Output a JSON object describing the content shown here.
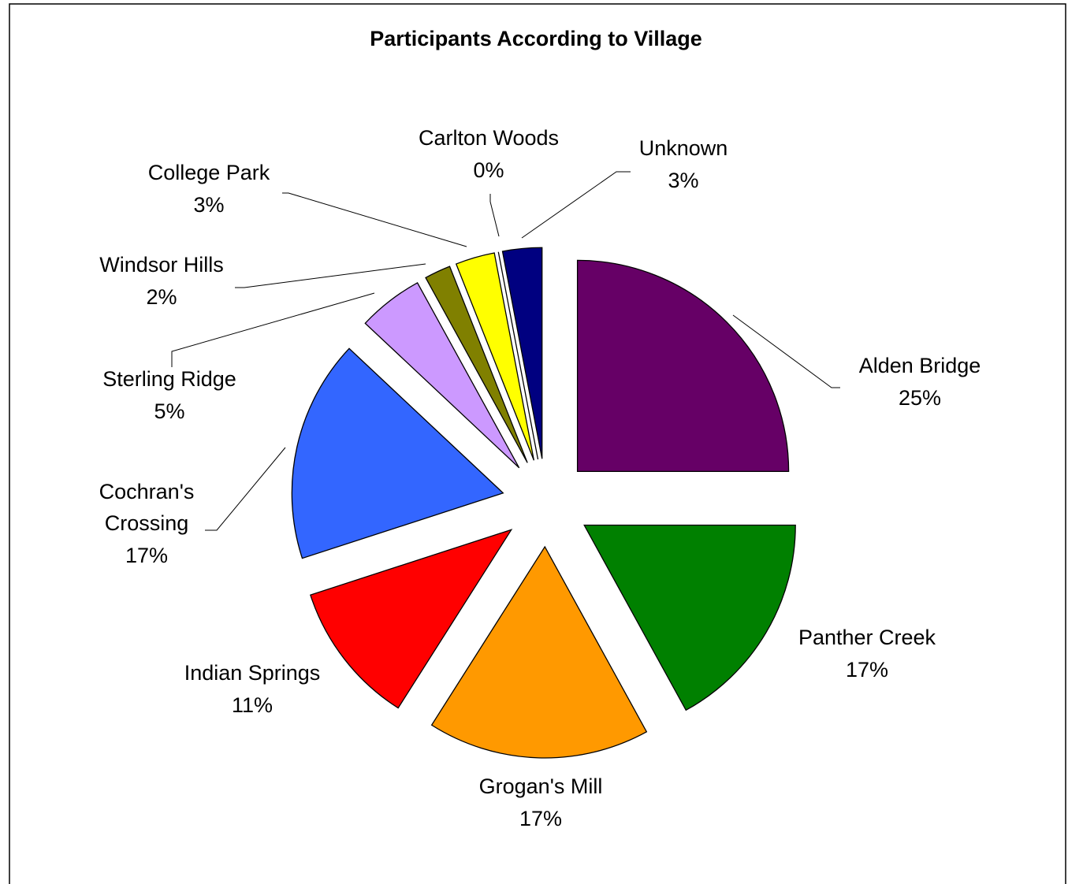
{
  "chart_data": {
    "type": "pie",
    "title": "Participants According to Village",
    "categories": [
      "Alden Bridge",
      "Panther Creek",
      "Grogan's Mill",
      "Indian Springs",
      "Cochran's Crossing",
      "Sterling Ridge",
      "Windsor Hills",
      "College Park",
      "Carlton Woods",
      "Unknown"
    ],
    "values": [
      25,
      17,
      17,
      11,
      17,
      5,
      2,
      3,
      0,
      3
    ],
    "value_labels": [
      "25%",
      "17%",
      "17%",
      "11%",
      "17%",
      "5%",
      "2%",
      "3%",
      "0%",
      "3%"
    ],
    "colors": [
      "#660066",
      "#008000",
      "#ff9900",
      "#ff0000",
      "#3366ff",
      "#cc99ff",
      "#808000",
      "#ffff00",
      "#ffffff",
      "#000080"
    ]
  }
}
